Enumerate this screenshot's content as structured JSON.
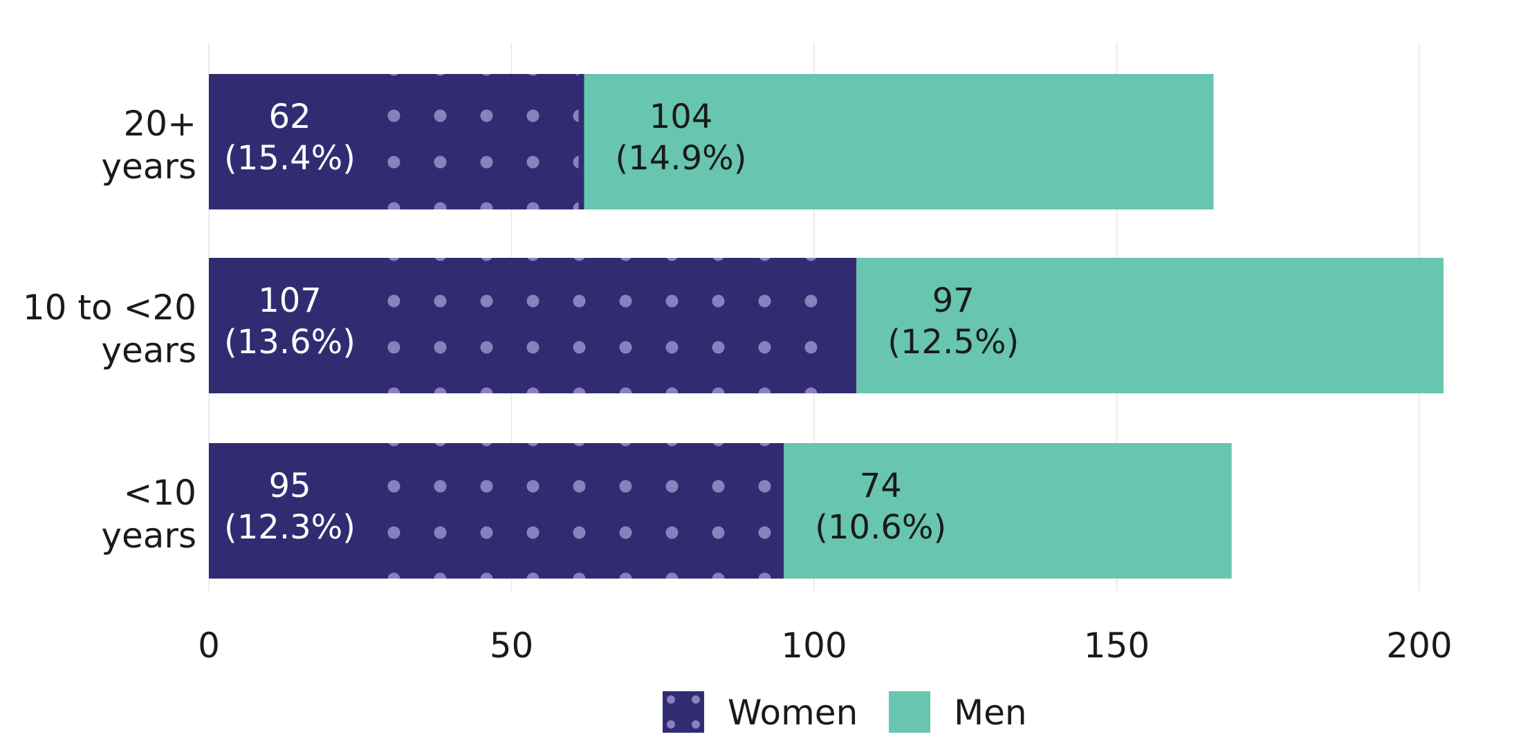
{
  "colors": {
    "women": "#312c72",
    "men": "#68c5af",
    "women_dots": "#8a80bd",
    "women_label": "#ffffff",
    "men_label": "#1a1a1a"
  },
  "chart_data": {
    "type": "bar",
    "orientation": "horizontal",
    "stacked": true,
    "categories": [
      [
        "20+",
        "years"
      ],
      [
        "10 to <20",
        "years"
      ],
      [
        "<10",
        "years"
      ]
    ],
    "series": [
      {
        "name": "Women",
        "values": [
          62,
          107,
          95
        ],
        "labels": [
          [
            "62",
            "(15.4%)"
          ],
          [
            "107",
            "(13.6%)"
          ],
          [
            "95",
            "(12.3%)"
          ]
        ],
        "pattern": "dots"
      },
      {
        "name": "Men",
        "values": [
          104,
          97,
          74
        ],
        "labels": [
          [
            "104",
            "(14.9%)"
          ],
          [
            "97",
            "(12.5%)"
          ],
          [
            "74",
            "(10.6%)"
          ]
        ]
      }
    ],
    "xlim": [
      0,
      200
    ],
    "xticks": [
      0,
      50,
      100,
      150,
      200
    ],
    "grid": true,
    "legend": "bottom"
  }
}
